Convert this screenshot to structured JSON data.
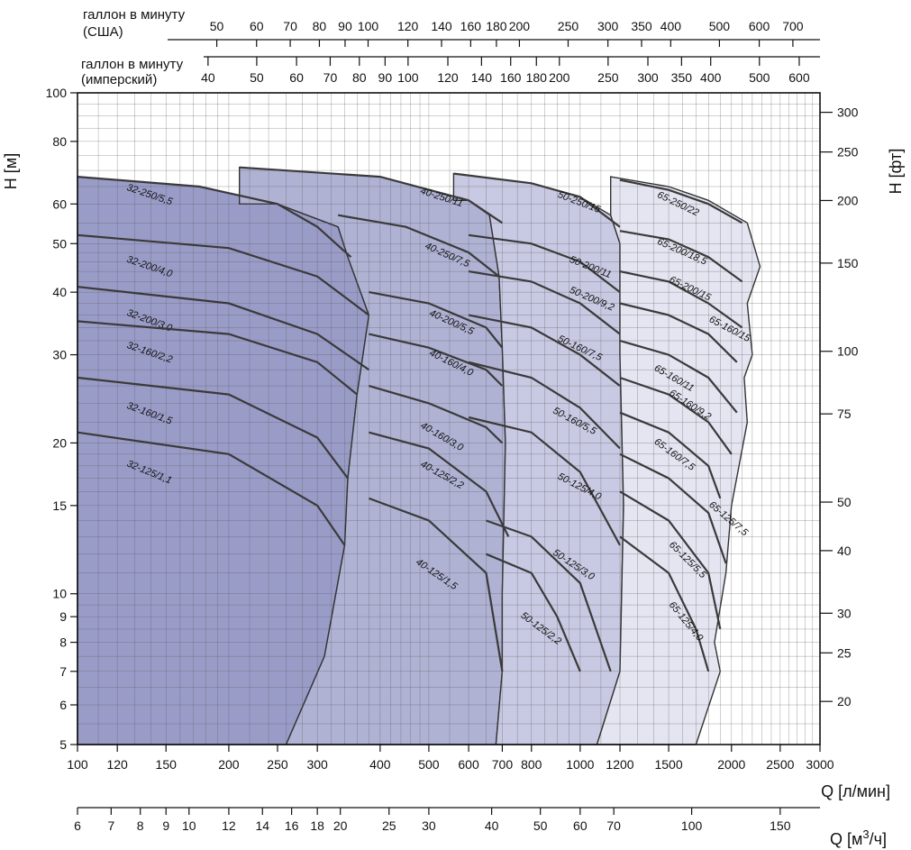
{
  "chart_data": {
    "type": "line",
    "title": "",
    "xlabel": "Q [л/мин]",
    "ylabel": "H [м]",
    "ylabel_right": "H [фт]",
    "x_scale": "log",
    "y_scale": "log",
    "xlim": [
      100,
      3000
    ],
    "ylim": [
      5,
      100
    ],
    "x_ticks": [
      100,
      120,
      150,
      200,
      250,
      300,
      400,
      500,
      600,
      700,
      800,
      1000,
      1200,
      1500,
      2000,
      2500,
      3000
    ],
    "y_ticks": [
      5,
      6,
      7,
      8,
      9,
      10,
      15,
      20,
      30,
      40,
      50,
      60,
      80,
      100
    ],
    "secondary_axes": {
      "m3h": {
        "label": "Q [м3/ч]",
        "unit_base": "Q [м",
        "unit_sup": "3",
        "unit_tail": "/ч]",
        "ticks": [
          6,
          7,
          8,
          9,
          10,
          12,
          14,
          16,
          18,
          20,
          25,
          30,
          40,
          50,
          60,
          70,
          100,
          150
        ]
      },
      "ft": {
        "label": "H [фт]",
        "ticks": [
          20,
          25,
          30,
          40,
          50,
          75,
          100,
          150,
          200,
          250,
          300
        ]
      },
      "us_gpm": {
        "label_line1": "галлон в минуту",
        "label_line2": "(США)",
        "ticks": [
          50,
          60,
          70,
          80,
          90,
          100,
          120,
          140,
          160,
          180,
          200,
          250,
          300,
          350,
          400,
          500,
          600,
          700
        ]
      },
      "imp_gpm": {
        "label_line1": "галлон в минуту",
        "label_line2": "(имперский)",
        "ticks": [
          40,
          50,
          60,
          70,
          80,
          90,
          100,
          120,
          140,
          160,
          180,
          200,
          250,
          300,
          350,
          400,
          500,
          600
        ]
      }
    },
    "series": [
      {
        "name": "32-250/5,5",
        "x": [
          100,
          175,
          250,
          300,
          350
        ],
        "y": [
          68,
          65,
          60,
          54,
          47
        ],
        "label_at": [
          125,
          64
        ]
      },
      {
        "name": "32-200/4,0",
        "x": [
          100,
          200,
          300,
          380
        ],
        "y": [
          52,
          49,
          43,
          36
        ],
        "label_at": [
          125,
          46
        ]
      },
      {
        "name": "32-200/3,0",
        "x": [
          100,
          200,
          300,
          380
        ],
        "y": [
          41,
          38,
          33,
          28
        ],
        "label_at": [
          125,
          36
        ]
      },
      {
        "name": "32-160/2,2",
        "x": [
          100,
          200,
          300,
          360
        ],
        "y": [
          35,
          33,
          29,
          25
        ],
        "label_at": [
          125,
          31
        ]
      },
      {
        "name": "32-160/1,5",
        "x": [
          100,
          200,
          300,
          345
        ],
        "y": [
          27,
          25,
          20.5,
          17
        ],
        "label_at": [
          125,
          23.5
        ]
      },
      {
        "name": "32-125/1,1",
        "x": [
          100,
          200,
          300,
          340
        ],
        "y": [
          21,
          19,
          15,
          12.5
        ],
        "label_at": [
          125,
          18
        ]
      },
      {
        "name": "40-250/11",
        "x": [
          210,
          400,
          600,
          700
        ],
        "y": [
          71,
          68,
          61,
          55
        ],
        "label_at": [
          480,
          63
        ]
      },
      {
        "name": "40-250/7,5",
        "x": [
          330,
          450,
          600,
          690
        ],
        "y": [
          57,
          54,
          48,
          43
        ],
        "label_at": [
          490,
          49
        ]
      },
      {
        "name": "40-200/5,5",
        "x": [
          380,
          500,
          650,
          700
        ],
        "y": [
          40,
          38,
          34,
          31
        ],
        "label_at": [
          500,
          36
        ]
      },
      {
        "name": "40-160/4,0",
        "x": [
          380,
          500,
          650,
          700
        ],
        "y": [
          33,
          31,
          28,
          26
        ],
        "label_at": [
          500,
          30
        ]
      },
      {
        "name": "40-160/3,0",
        "x": [
          380,
          500,
          650,
          700
        ],
        "y": [
          26,
          24,
          21.5,
          20
        ],
        "label_at": [
          480,
          21.5
        ]
      },
      {
        "name": "40-125/2,2",
        "x": [
          380,
          500,
          650,
          720
        ],
        "y": [
          21,
          19.5,
          16,
          13
        ],
        "label_at": [
          480,
          18
        ]
      },
      {
        "name": "40-125/1,5",
        "x": [
          380,
          500,
          650,
          700
        ],
        "y": [
          15.5,
          14,
          11,
          7
        ],
        "label_at": [
          470,
          11.5
        ]
      },
      {
        "name": "50-250/15",
        "x": [
          560,
          800,
          1000,
          1200
        ],
        "y": [
          69,
          66,
          62,
          54
        ],
        "label_at": [
          900,
          62
        ]
      },
      {
        "name": "50-200/11",
        "x": [
          600,
          800,
          1000,
          1200
        ],
        "y": [
          52,
          50,
          46,
          40
        ],
        "label_at": [
          950,
          46
        ]
      },
      {
        "name": "50-200/9,2",
        "x": [
          600,
          800,
          1000,
          1200
        ],
        "y": [
          44,
          42,
          38,
          33
        ],
        "label_at": [
          950,
          40
        ]
      },
      {
        "name": "50-160/7,5",
        "x": [
          600,
          800,
          1000,
          1200
        ],
        "y": [
          36,
          34,
          30,
          26
        ],
        "label_at": [
          900,
          32
        ]
      },
      {
        "name": "50-160/5,5",
        "x": [
          600,
          800,
          1000,
          1200
        ],
        "y": [
          29,
          27,
          23.5,
          19.5
        ],
        "label_at": [
          880,
          23
        ]
      },
      {
        "name": "50-125/4,0",
        "x": [
          600,
          800,
          1000,
          1200
        ],
        "y": [
          22.5,
          21,
          17.5,
          12.5
        ],
        "label_at": [
          900,
          17
        ]
      },
      {
        "name": "50-125/3,0",
        "x": [
          650,
          800,
          1000,
          1150
        ],
        "y": [
          14,
          13,
          10.5,
          7
        ],
        "label_at": [
          880,
          12
        ]
      },
      {
        "name": "50-125/2,2",
        "x": [
          650,
          800,
          900,
          1000
        ],
        "y": [
          12,
          11,
          9,
          7
        ],
        "label_at": [
          760,
          9
        ]
      },
      {
        "name": "65-250/22",
        "x": [
          1200,
          1500,
          1800,
          2100
        ],
        "y": [
          67,
          64,
          60,
          55
        ],
        "label_at": [
          1420,
          62
        ]
      },
      {
        "name": "65-200/18,5",
        "x": [
          1200,
          1500,
          1800,
          2100
        ],
        "y": [
          53,
          51,
          47,
          42
        ],
        "label_at": [
          1420,
          50
        ]
      },
      {
        "name": "65-200/15",
        "x": [
          1200,
          1500,
          1800,
          2100
        ],
        "y": [
          44,
          42,
          38,
          34
        ],
        "label_at": [
          1500,
          42
        ]
      },
      {
        "name": "65-160/15",
        "x": [
          1200,
          1500,
          1800,
          2050
        ],
        "y": [
          38,
          36,
          33,
          29
        ],
        "label_at": [
          1800,
          35
        ]
      },
      {
        "name": "65-160/11",
        "x": [
          1200,
          1500,
          1800,
          2050
        ],
        "y": [
          32,
          30,
          27,
          23
        ],
        "label_at": [
          1400,
          28
        ]
      },
      {
        "name": "65-160/9,2",
        "x": [
          1200,
          1500,
          1800,
          2000
        ],
        "y": [
          27,
          25,
          22,
          19
        ],
        "label_at": [
          1500,
          25
        ]
      },
      {
        "name": "65-160/7,5",
        "x": [
          1200,
          1500,
          1800,
          1900
        ],
        "y": [
          23,
          21,
          18,
          15.5
        ],
        "label_at": [
          1400,
          20
        ]
      },
      {
        "name": "65-125/7,5",
        "x": [
          1200,
          1500,
          1800,
          1950
        ],
        "y": [
          19,
          17,
          14.5,
          11.5
        ],
        "label_at": [
          1800,
          15
        ]
      },
      {
        "name": "65-125/5,5",
        "x": [
          1200,
          1500,
          1800,
          1900
        ],
        "y": [
          16,
          14,
          11,
          8.5
        ],
        "label_at": [
          1500,
          12.5
        ]
      },
      {
        "name": "65-125/4,0",
        "x": [
          1200,
          1500,
          1700,
          1800
        ],
        "y": [
          13,
          11,
          8.5,
          7
        ],
        "label_at": [
          1500,
          9.5
        ]
      }
    ],
    "regions": [
      {
        "color": "#9a9cc8",
        "outline": [
          [
            100,
            5
          ],
          [
            100,
            68
          ],
          [
            175,
            65
          ],
          [
            250,
            60
          ],
          [
            330,
            54
          ],
          [
            345,
            47
          ],
          [
            380,
            36
          ],
          [
            360,
            25
          ],
          [
            345,
            17
          ],
          [
            340,
            12.5
          ],
          [
            310,
            7.5
          ],
          [
            260,
            5
          ]
        ]
      },
      {
        "color": "#b0b2d4",
        "outline": [
          [
            260,
            5
          ],
          [
            310,
            7.5
          ],
          [
            340,
            12.5
          ],
          [
            345,
            17
          ],
          [
            360,
            25
          ],
          [
            380,
            36
          ],
          [
            345,
            47
          ],
          [
            330,
            54
          ],
          [
            250,
            60
          ],
          [
            210,
            60
          ],
          [
            210,
            71
          ],
          [
            400,
            68
          ],
          [
            600,
            61
          ],
          [
            660,
            57
          ],
          [
            690,
            43
          ],
          [
            700,
            31
          ],
          [
            710,
            20
          ],
          [
            700,
            10
          ],
          [
            700,
            7
          ],
          [
            680,
            5
          ]
        ]
      },
      {
        "color": "#c8c9e2",
        "outline": [
          [
            680,
            5
          ],
          [
            700,
            7
          ],
          [
            700,
            10
          ],
          [
            710,
            20
          ],
          [
            700,
            31
          ],
          [
            690,
            43
          ],
          [
            660,
            57
          ],
          [
            600,
            61
          ],
          [
            560,
            61
          ],
          [
            560,
            69
          ],
          [
            800,
            66
          ],
          [
            1000,
            62
          ],
          [
            1150,
            57
          ],
          [
            1200,
            50
          ],
          [
            1200,
            30
          ],
          [
            1220,
            15
          ],
          [
            1200,
            7
          ],
          [
            1080,
            5
          ]
        ]
      },
      {
        "color": "#e4e5f1",
        "outline": [
          [
            1080,
            5
          ],
          [
            1200,
            7
          ],
          [
            1220,
            15
          ],
          [
            1200,
            30
          ],
          [
            1200,
            50
          ],
          [
            1150,
            57
          ],
          [
            1150,
            68
          ],
          [
            1500,
            65
          ],
          [
            1800,
            61
          ],
          [
            2150,
            55
          ],
          [
            2280,
            45
          ],
          [
            2150,
            38
          ],
          [
            2200,
            30
          ],
          [
            2120,
            27
          ],
          [
            2150,
            22
          ],
          [
            2000,
            15
          ],
          [
            1950,
            11
          ],
          [
            1850,
            8
          ],
          [
            1900,
            7
          ],
          [
            1700,
            5
          ]
        ]
      }
    ]
  }
}
